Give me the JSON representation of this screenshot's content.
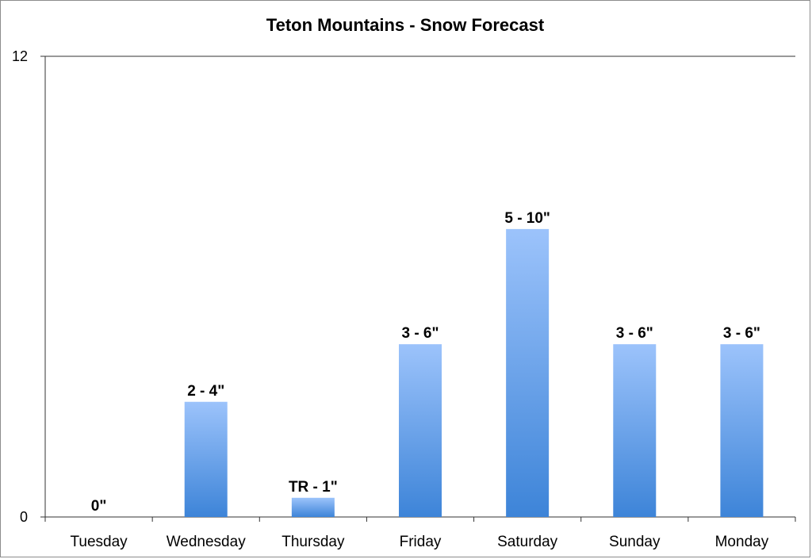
{
  "chart_data": {
    "type": "bar",
    "title": "Teton Mountains - Snow Forecast",
    "xlabel": "",
    "ylabel": "",
    "ylim": [
      0,
      12
    ],
    "yticks": [
      "0",
      "12"
    ],
    "grid": false,
    "legend": "none",
    "categories": [
      "Tuesday",
      "Wednesday",
      "Thursday",
      "Friday",
      "Saturday",
      "Sunday",
      "Monday"
    ],
    "values": [
      0,
      3,
      0.5,
      4.5,
      7.5,
      4.5,
      4.5
    ],
    "data_labels": [
      "0\"",
      "2 - 4\"",
      "TR - 1\"",
      "3 - 6\"",
      "5 - 10\"",
      "3 - 6\"",
      "3 - 6\""
    ],
    "colors": {
      "bar_top": "#9cc3fb",
      "bar_bottom": "#3d84d8",
      "axis": "#333333"
    }
  }
}
